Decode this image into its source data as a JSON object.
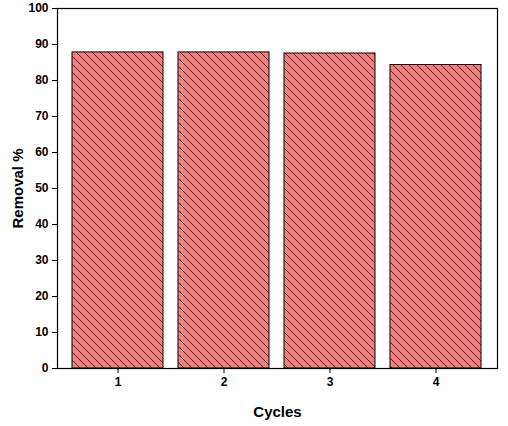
{
  "chart_data": {
    "type": "bar",
    "x_label": "Cycles",
    "y_label": "Removal %",
    "categories": [
      "1",
      "2",
      "3",
      "4"
    ],
    "values": [
      87.8,
      87.8,
      87.5,
      84.3
    ],
    "color": "#f08080",
    "ylim": [
      0,
      100
    ],
    "yticks": [
      0,
      10,
      20,
      30,
      40,
      50,
      60,
      70,
      80,
      90,
      100
    ],
    "grid": false
  }
}
